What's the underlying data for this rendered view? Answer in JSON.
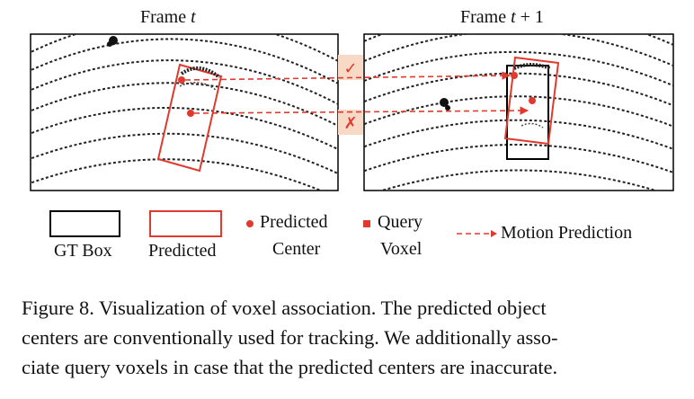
{
  "figure": {
    "frame_left": {
      "prefix": "Frame ",
      "var": "t",
      "suffix": ""
    },
    "frame_right": {
      "prefix": "Frame ",
      "var": "t",
      "suffix": " + 1"
    },
    "check_mark": "✓",
    "cross_mark": "✗",
    "colors": {
      "prediction": "#e03a2f",
      "gt": "#000000",
      "badge": "#f7d9c6"
    }
  },
  "legend": {
    "gt_box": "GT Box",
    "predicted": "Predicted",
    "predicted_center": [
      "Predicted",
      "Center"
    ],
    "query_voxel": [
      "Query",
      "Voxel"
    ],
    "motion_prediction": "Motion Prediction"
  },
  "caption": {
    "lines": [
      "Figure 8.  Visualization of voxel association.  The predicted object",
      "centers are conventionally used for tracking. We additionally asso-",
      "ciate query voxels in case that the predicted centers are inaccurate."
    ]
  }
}
